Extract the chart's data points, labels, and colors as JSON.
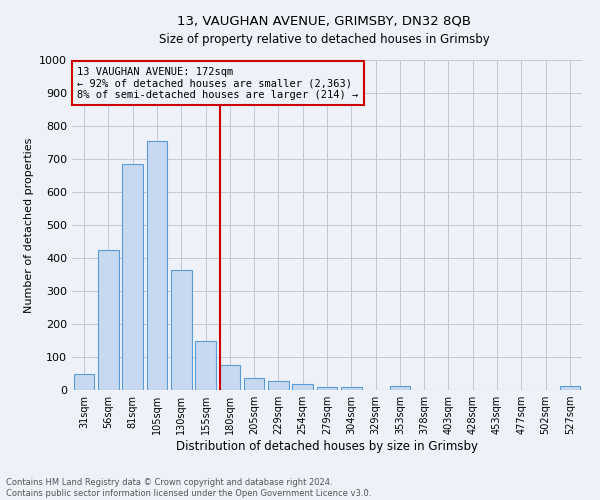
{
  "title1": "13, VAUGHAN AVENUE, GRIMSBY, DN32 8QB",
  "title2": "Size of property relative to detached houses in Grimsby",
  "xlabel": "Distribution of detached houses by size in Grimsby",
  "ylabel": "Number of detached properties",
  "footnote1": "Contains HM Land Registry data © Crown copyright and database right 2024.",
  "footnote2": "Contains public sector information licensed under the Open Government Licence v3.0.",
  "bar_labels": [
    "31sqm",
    "56sqm",
    "81sqm",
    "105sqm",
    "130sqm",
    "155sqm",
    "180sqm",
    "205sqm",
    "229sqm",
    "254sqm",
    "279sqm",
    "304sqm",
    "329sqm",
    "353sqm",
    "378sqm",
    "403sqm",
    "428sqm",
    "453sqm",
    "477sqm",
    "502sqm",
    "527sqm"
  ],
  "bar_values": [
    50,
    425,
    685,
    755,
    365,
    150,
    75,
    37,
    26,
    18,
    10,
    8,
    0,
    11,
    0,
    0,
    0,
    0,
    0,
    0,
    11
  ],
  "bar_color": "#c6d9f0",
  "bar_edge_color": "#5b9bd5",
  "grid_color": "#c0c8d8",
  "background_color": "#eef2f8",
  "vline_color": "#cc0000",
  "annotation_text1": "13 VAUGHAN AVENUE: 172sqm",
  "annotation_text2": "← 92% of detached houses are smaller (2,363)",
  "annotation_text3": "8% of semi-detached houses are larger (214) →",
  "box_edge_color": "#cc0000",
  "ylim": [
    0,
    1000
  ],
  "yticks": [
    0,
    100,
    200,
    300,
    400,
    500,
    600,
    700,
    800,
    900,
    1000
  ]
}
